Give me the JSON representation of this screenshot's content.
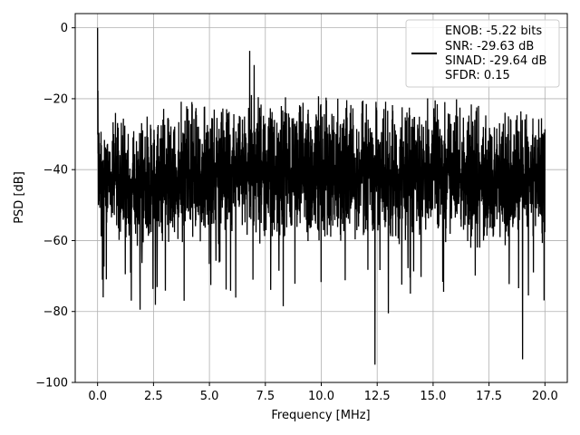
{
  "chart_data": {
    "type": "line",
    "xlabel": "Frequency [MHz]",
    "ylabel": "PSD [dB]",
    "xlim": [
      -1,
      21
    ],
    "ylim": [
      -100,
      4
    ],
    "xticks": [
      0.0,
      2.5,
      5.0,
      7.5,
      10.0,
      12.5,
      15.0,
      17.5,
      20.0
    ],
    "xtick_labels": [
      "0.0",
      "2.5",
      "5.0",
      "7.5",
      "10.0",
      "12.5",
      "15.0",
      "17.5",
      "20.0"
    ],
    "yticks": [
      0,
      -20,
      -40,
      -60,
      -80,
      -100
    ],
    "ytick_labels": [
      "0",
      "−20",
      "−40",
      "−60",
      "−80",
      "−100"
    ],
    "grid": true,
    "legend_placement": "top-right",
    "line_color": "#000000",
    "legend_lines": [
      "ENOB: -5.22 bits",
      "SNR: -29.63 dB",
      "SINAD: -29.64 dB",
      "SFDR: 0.15"
    ],
    "series": [
      {
        "x_range": [
          0,
          20
        ],
        "upper_envelope": [
          [
            0.0,
            0
          ],
          [
            0.05,
            -18
          ],
          [
            0.5,
            -23
          ],
          [
            2.0,
            -23
          ],
          [
            3.0,
            -21
          ],
          [
            4.0,
            -19.5
          ],
          [
            5.0,
            -18.5
          ],
          [
            7.0,
            -17.5
          ],
          [
            10.0,
            -17.5
          ],
          [
            12.5,
            -18
          ],
          [
            15.0,
            -18.5
          ],
          [
            17.5,
            -19.5
          ],
          [
            20.0,
            -20.5
          ]
        ],
        "lower_envelope": [
          [
            0.0,
            -60
          ],
          [
            2.5,
            -64
          ],
          [
            5.0,
            -62
          ],
          [
            7.5,
            -63
          ],
          [
            10.0,
            -63
          ],
          [
            12.5,
            -62
          ],
          [
            15.0,
            -62
          ],
          [
            17.5,
            -64
          ],
          [
            20.0,
            -62
          ]
        ],
        "spurs": [
          [
            0.0,
            0
          ],
          [
            6.8,
            -6.5
          ],
          [
            7.0,
            -10.5
          ]
        ],
        "dips": [
          [
            0.25,
            -76
          ],
          [
            1.9,
            -79.5
          ],
          [
            8.3,
            -78.5
          ],
          [
            12.4,
            -95
          ],
          [
            13.0,
            -80.5
          ],
          [
            19.0,
            -93.5
          ]
        ]
      }
    ]
  }
}
